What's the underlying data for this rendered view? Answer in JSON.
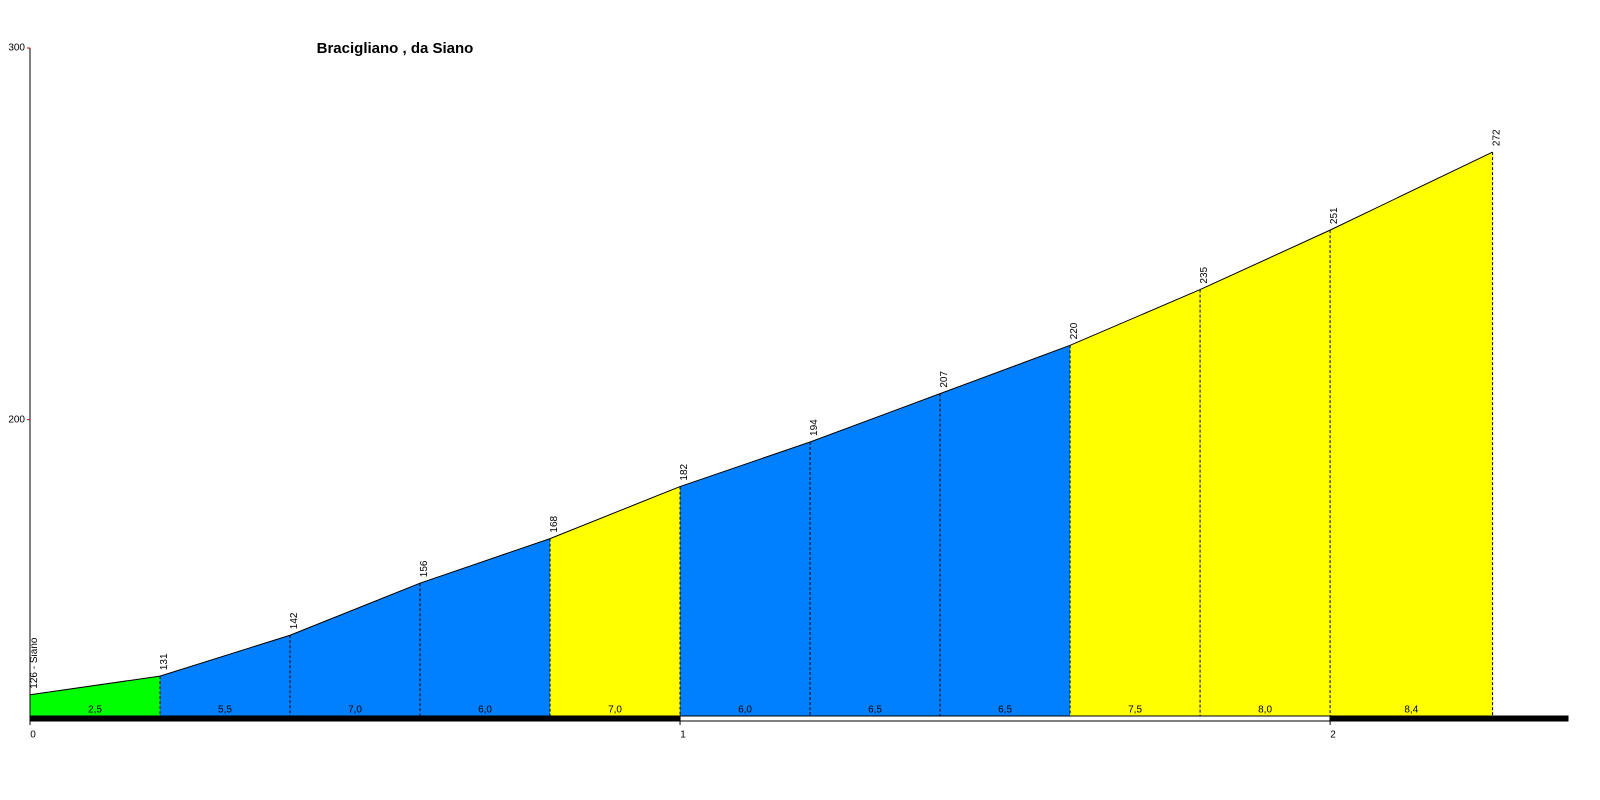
{
  "chart_data": {
    "type": "elevation-profile",
    "title": "Bracigliano , da Siano",
    "x": [
      0,
      0.2,
      0.4,
      0.6,
      0.8,
      1.0,
      1.2,
      1.4,
      1.6,
      1.8,
      2.0,
      2.25
    ],
    "values": [
      126,
      131,
      142,
      156,
      168,
      182,
      194,
      207,
      220,
      235,
      251,
      272
    ],
    "value_labels": [
      "126 - Siano",
      "131",
      "142",
      "156",
      "168",
      "182",
      "194",
      "207",
      "220",
      "235",
      "251",
      "272"
    ],
    "segment_gradients": [
      {
        "value": 2.5,
        "label": "2,5"
      },
      {
        "value": 5.5,
        "label": "5,5"
      },
      {
        "value": 7.0,
        "label": "7,0"
      },
      {
        "value": 6.0,
        "label": "6,0"
      },
      {
        "value": 7.0,
        "label": "7,0"
      },
      {
        "value": 6.0,
        "label": "6,0"
      },
      {
        "value": 6.5,
        "label": "6,5"
      },
      {
        "value": 6.5,
        "label": "6,5"
      },
      {
        "value": 7.5,
        "label": "7,5"
      },
      {
        "value": 8.0,
        "label": "8,0"
      },
      {
        "value": 8.4,
        "label": "8,4"
      }
    ],
    "segment_colors": [
      "#00ff00",
      "#0080ff",
      "#0080ff",
      "#0080ff",
      "#ffff00",
      "#0080ff",
      "#0080ff",
      "#0080ff",
      "#ffff00",
      "#ffff00",
      "#ffff00"
    ],
    "xlim": [
      0,
      2.366
    ],
    "xticks": [
      0,
      1,
      2
    ],
    "ylim": [
      120,
      300
    ],
    "yticks": [
      200,
      300
    ]
  }
}
